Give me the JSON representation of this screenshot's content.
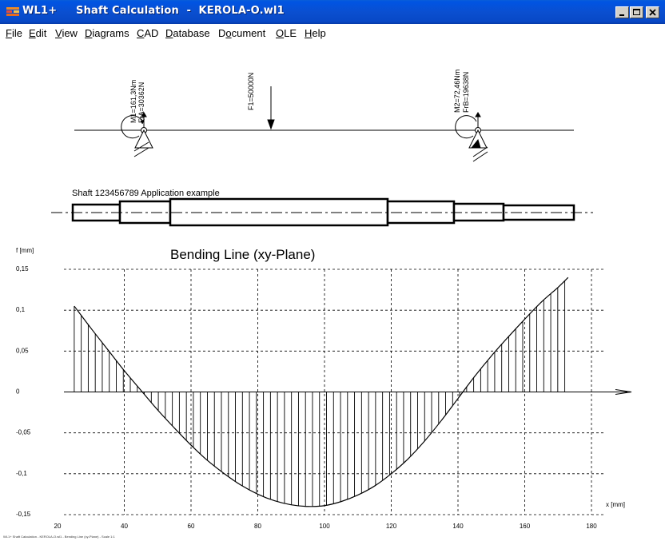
{
  "window": {
    "app_name": "WL1+",
    "title": "Shaft Calculation  -  KEROLA-O.wl1"
  },
  "menu": [
    {
      "label": "File",
      "ul": "F"
    },
    {
      "label": "Edit",
      "ul": "E"
    },
    {
      "label": "View",
      "ul": "V"
    },
    {
      "label": "Diagrams",
      "ul": "D"
    },
    {
      "label": "CAD",
      "ul": "C"
    },
    {
      "label": "Database",
      "ul": "D"
    },
    {
      "label": "Document",
      "ul": "o"
    },
    {
      "label": "OLE",
      "ul": "O"
    },
    {
      "label": "Help",
      "ul": "H"
    }
  ],
  "loads": {
    "support_a_moment": "M1=161,3Nm",
    "support_a_force": "FrA=30362N",
    "force": "F1=50000N",
    "support_b_moment": "M2=72,46Nm",
    "support_b_force": "FrB=19638N"
  },
  "shaft": {
    "caption": "Shaft 123456789  Application example"
  },
  "chart_data": {
    "type": "area",
    "title": "Bending Line (xy-Plane)",
    "ylabel": "f [mm]",
    "xlabel": "x [mm]",
    "x_ticks": [
      20,
      40,
      60,
      80,
      100,
      120,
      140,
      160,
      180
    ],
    "y_ticks": [
      0.15,
      0.1,
      0.05,
      0,
      -0.05,
      -0.1,
      -0.15
    ],
    "y_tick_labels": [
      "0,15",
      "0,1",
      "0,05",
      "0",
      "-0,05",
      "-0,1",
      "-0,15"
    ],
    "xlim": [
      20,
      180
    ],
    "ylim": [
      -0.15,
      0.15
    ],
    "grid": true,
    "x": [
      25,
      30,
      35,
      40,
      45,
      50,
      55,
      60,
      65,
      70,
      75,
      80,
      85,
      90,
      95,
      100,
      105,
      110,
      115,
      120,
      125,
      130,
      135,
      140,
      145,
      150,
      155,
      160,
      165,
      170,
      173
    ],
    "values": [
      0.105,
      0.078,
      0.052,
      0.026,
      0.002,
      -0.022,
      -0.044,
      -0.065,
      -0.084,
      -0.1,
      -0.114,
      -0.125,
      -0.133,
      -0.138,
      -0.14,
      -0.139,
      -0.134,
      -0.126,
      -0.115,
      -0.1,
      -0.082,
      -0.06,
      -0.035,
      -0.008,
      0.019,
      0.044,
      0.067,
      0.089,
      0.11,
      0.128,
      0.14
    ]
  },
  "status": {
    "text": "WL1+ Shaft Calculation - KEROLA-O.wl1 - Bending Line (xy-Plane) - Scale 1:1"
  }
}
